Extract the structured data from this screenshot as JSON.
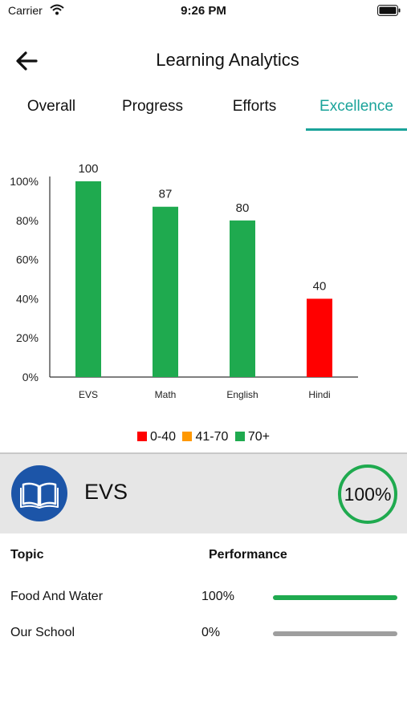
{
  "status_bar": {
    "carrier": "Carrier",
    "time": "9:26 PM",
    "icons": [
      "wifi-icon",
      "battery-icon"
    ]
  },
  "header": {
    "title": "Learning Analytics",
    "back_icon": "arrow-left-icon"
  },
  "tabs": [
    {
      "label": "Overall",
      "active": false
    },
    {
      "label": "Progress",
      "active": false
    },
    {
      "label": "Efforts",
      "active": false
    },
    {
      "label": "Excellence",
      "active": true
    }
  ],
  "chart_data": {
    "type": "bar",
    "categories": [
      "EVS",
      "Math",
      "English",
      "Hindi"
    ],
    "values": [
      100,
      87,
      80,
      40
    ],
    "data_labels": [
      "100",
      "87",
      "80",
      "40"
    ],
    "yticks": [
      "0%",
      "20%",
      "40%",
      "60%",
      "80%",
      "100%"
    ],
    "ylim": [
      0,
      100
    ],
    "grid": false,
    "legend_position": "bottom",
    "legend": [
      {
        "label": "0-40",
        "color": "#ff0000"
      },
      {
        "label": "41-70",
        "color": "#ff9800"
      },
      {
        "label": "70+",
        "color": "#1faa4f"
      }
    ],
    "bar_colors": [
      "#1faa4f",
      "#1faa4f",
      "#1faa4f",
      "#ff0000"
    ]
  },
  "subject": {
    "name": "EVS",
    "score": "100%",
    "icon": "book-icon",
    "ring_color": "#1faa4f"
  },
  "topics": {
    "header_topic": "Topic",
    "header_performance": "Performance",
    "rows": [
      {
        "name": "Food And Water",
        "percent": "100%",
        "value": 100
      },
      {
        "name": "Our School",
        "percent": "0%",
        "value": 0
      }
    ]
  },
  "colors": {
    "accent": "#1aa39a",
    "good": "#1faa4f",
    "bad": "#ff0000",
    "medium": "#ff9800"
  }
}
